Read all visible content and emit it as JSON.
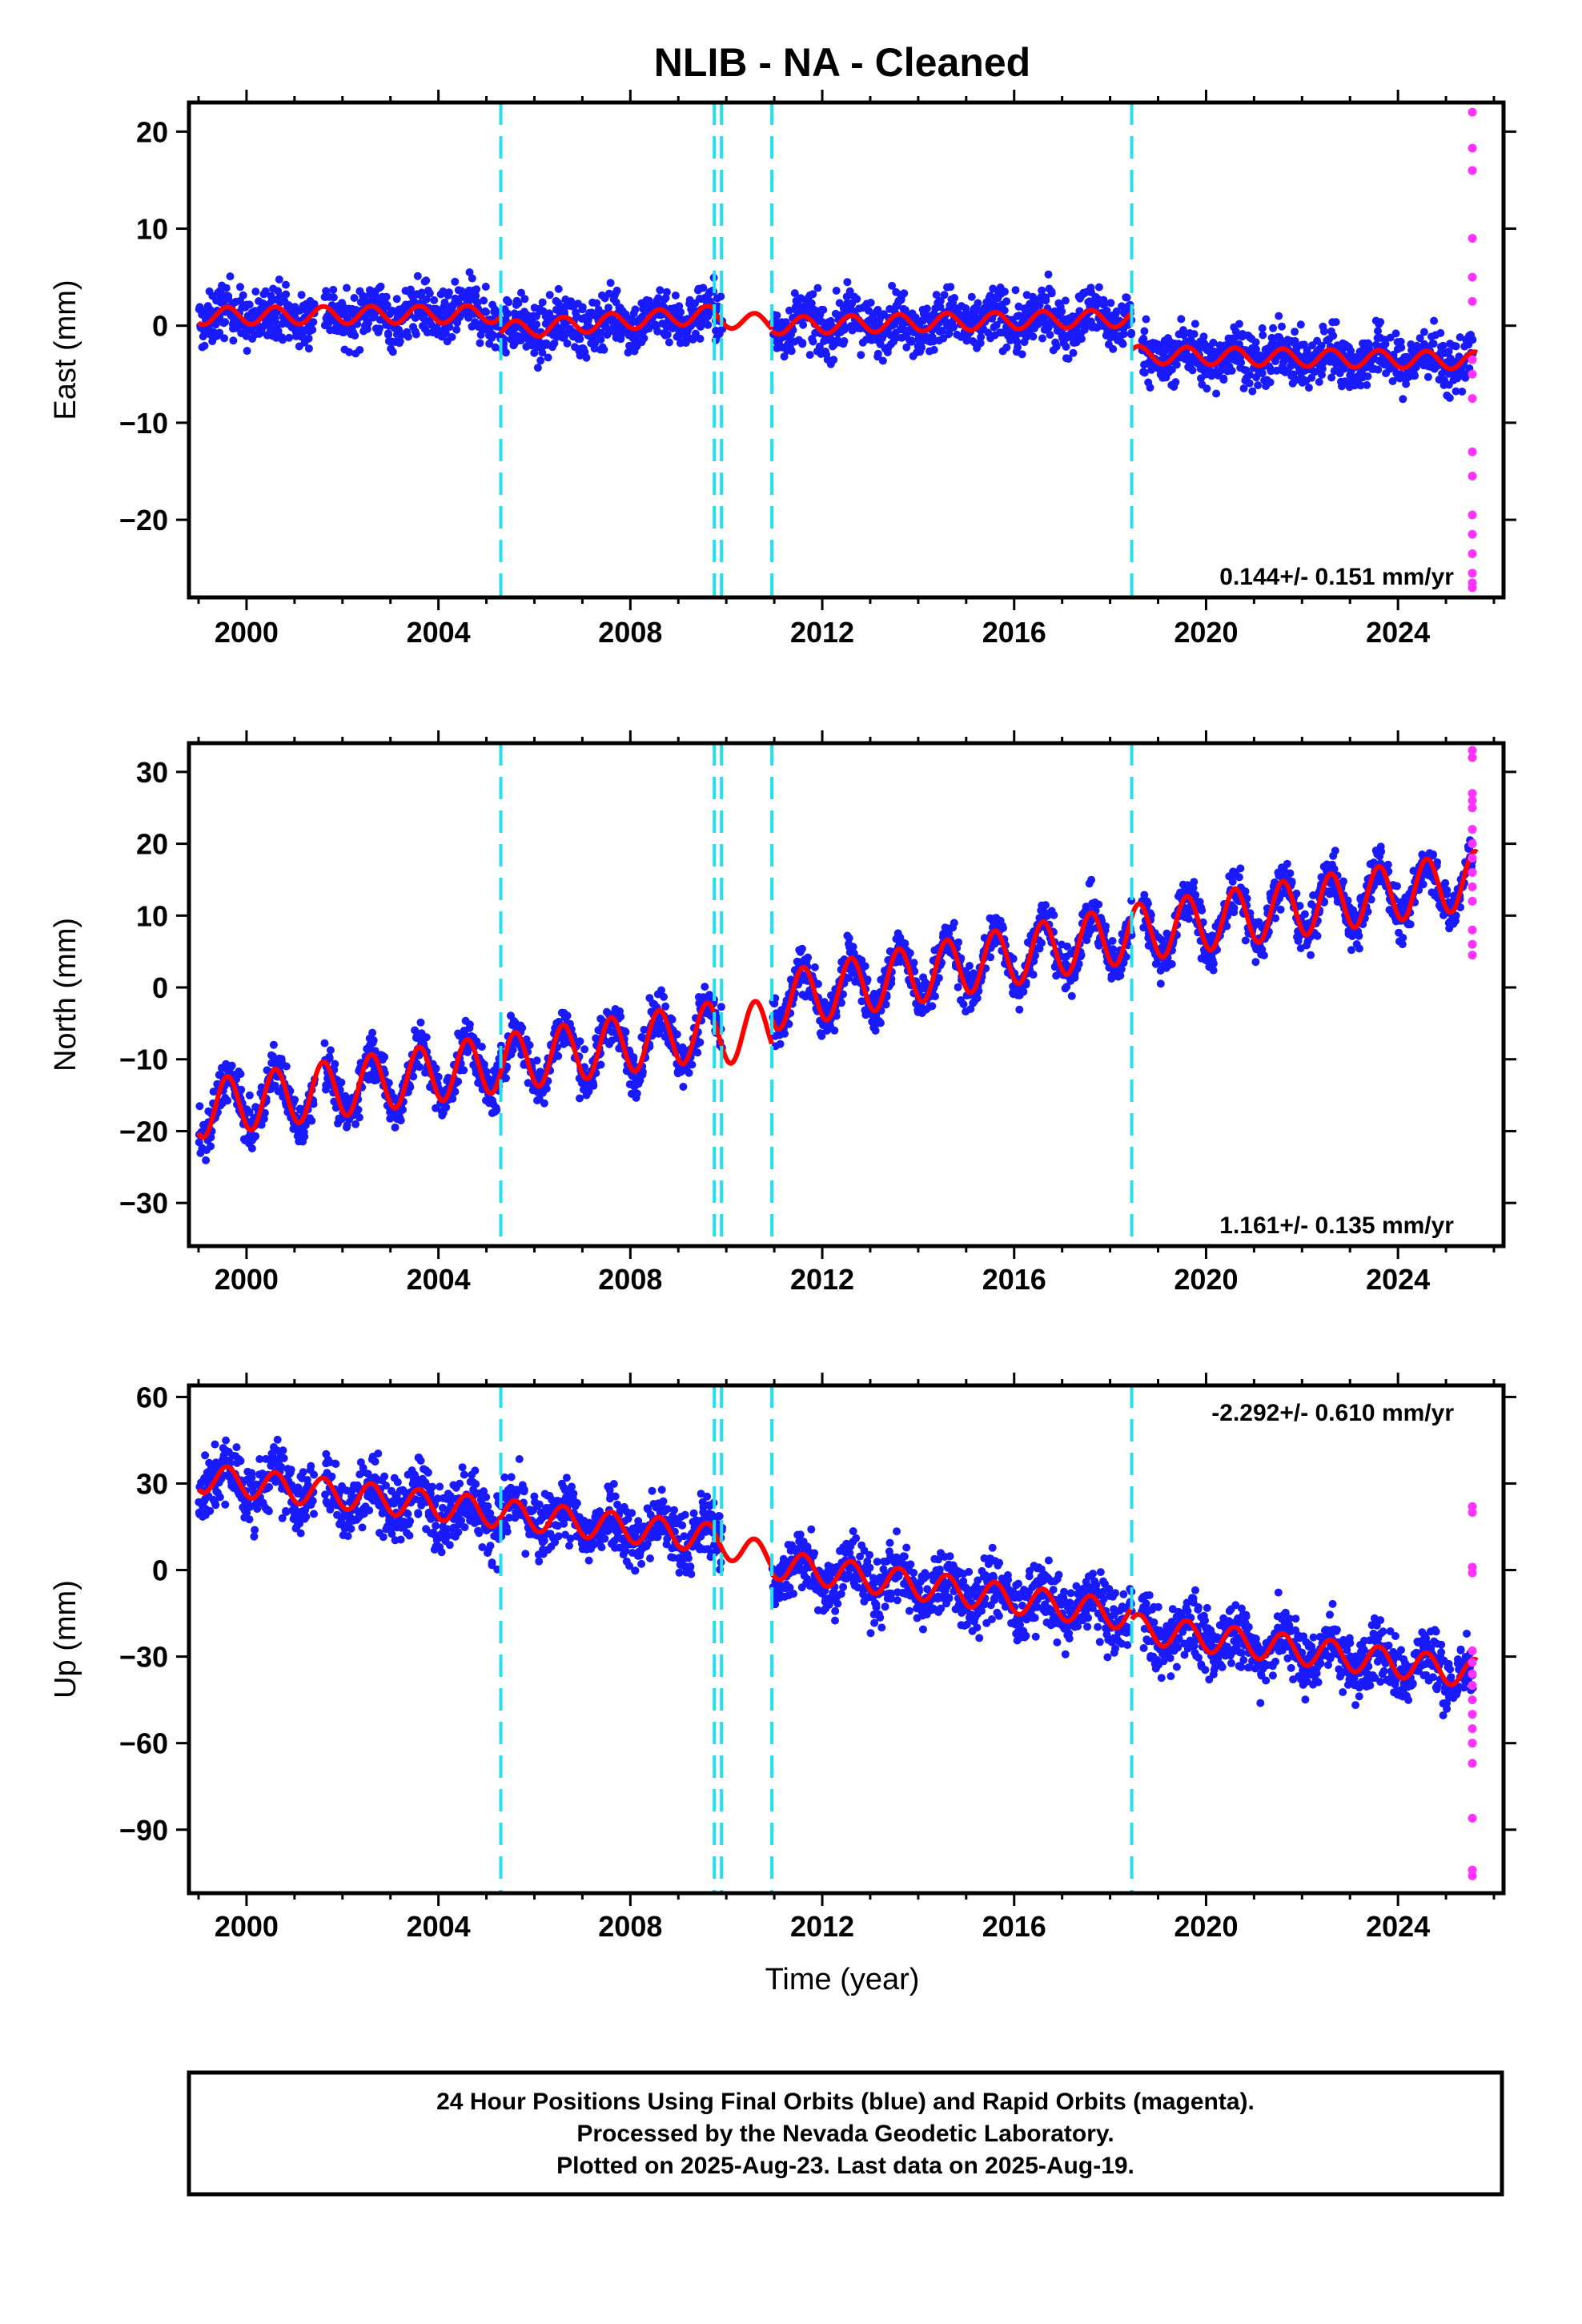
{
  "title": "NLIB  - NA - Cleaned",
  "xlabel": "Time (year)",
  "footer": {
    "line1": "24 Hour Positions Using Final Orbits (blue) and Rapid Orbits (magenta).",
    "line2": "Processed by the Nevada Geodetic Laboratory.",
    "line3": "Plotted on 2025-Aug-23. Last data on 2025-Aug-19."
  },
  "colors": {
    "final": "#1a1aff",
    "rapid": "#ff33ff",
    "model": "#ff0000",
    "events": "#22e0ee",
    "axis": "#000000"
  },
  "chart_data": [
    {
      "type": "scatter",
      "component": "east",
      "ylabel": "East (mm)",
      "rate": "0.144+/- 0.151 mm/yr",
      "rate_position": "bottom-right",
      "xlim": [
        1998.8,
        2026.2
      ],
      "ylim": [
        -28,
        23
      ],
      "xticks": [
        2000,
        2004,
        2008,
        2012,
        2016,
        2020,
        2024
      ],
      "yticks": [
        20,
        10,
        0,
        -10,
        -20
      ],
      "event_lines": [
        2005.3,
        2009.75,
        2009.9,
        2010.95,
        2018.45
      ],
      "data_gaps": [
        [
          2001.4,
          2001.6
        ],
        [
          2009.9,
          2010.95
        ],
        [
          2018.45,
          2018.65
        ]
      ],
      "rapid_x": 2025.55,
      "rapid_values": [
        22.0,
        18.3,
        16.0,
        9.0,
        5.0,
        2.5,
        -3.5,
        -5.0,
        -7.5,
        -13.0,
        -15.5,
        -19.5,
        -21.5,
        -23.5,
        -25.5,
        -26.5,
        -27.0
      ],
      "model_segments": [
        {
          "x0": 1999.0,
          "x1": 2005.3,
          "y0": 1.0,
          "y1": 1.2,
          "amp": 0.9
        },
        {
          "x0": 2005.3,
          "x1": 2009.75,
          "y0": -0.5,
          "y1": 1.2,
          "amp": 0.9
        },
        {
          "x0": 2009.75,
          "x1": 2010.95,
          "y0": 0.8,
          "y1": 0.2,
          "amp": 0.9
        },
        {
          "x0": 2010.95,
          "x1": 2018.45,
          "y0": 0.0,
          "y1": 0.8,
          "amp": 0.9
        },
        {
          "x0": 2018.45,
          "x1": 2025.65,
          "y0": -3.0,
          "y1": -3.6,
          "amp": 0.9
        }
      ],
      "scatter_noise": 2.0
    },
    {
      "type": "scatter",
      "component": "north",
      "ylabel": "North (mm)",
      "rate": "1.161+/- 0.135 mm/yr",
      "rate_position": "bottom-right",
      "xlim": [
        1998.8,
        2026.2
      ],
      "ylim": [
        -36,
        34
      ],
      "xticks": [
        2000,
        2004,
        2008,
        2012,
        2016,
        2020,
        2024
      ],
      "yticks": [
        30,
        20,
        10,
        0,
        -10,
        -20,
        -30
      ],
      "event_lines": [
        2005.3,
        2009.75,
        2009.9,
        2010.95,
        2018.45
      ],
      "data_gaps": [
        [
          2001.4,
          2001.6
        ],
        [
          2009.9,
          2010.95
        ],
        [
          2018.45,
          2018.65
        ]
      ],
      "rapid_x": 2025.55,
      "rapid_values": [
        33.0,
        32.0,
        27.0,
        26.0,
        25.0,
        22.0,
        20.0,
        18.0,
        16.0,
        14.0,
        12.0,
        8.0,
        6.0,
        4.5
      ],
      "model_segments": [
        {
          "x0": 1999.0,
          "x1": 2009.75,
          "y0": -17.0,
          "y1": -6.0,
          "amp": 4.0
        },
        {
          "x0": 2009.75,
          "x1": 2010.95,
          "y0": -7.0,
          "y1": -5.5,
          "amp": 4.0
        },
        {
          "x0": 2010.95,
          "x1": 2018.45,
          "y0": -2.0,
          "y1": 7.5,
          "amp": 4.0
        },
        {
          "x0": 2018.45,
          "x1": 2025.65,
          "y0": 7.5,
          "y1": 15.0,
          "amp": 4.0
        }
      ],
      "scatter_noise": 2.3
    },
    {
      "type": "scatter",
      "component": "up",
      "ylabel": "Up (mm)",
      "rate": "-2.292+/- 0.610 mm/yr",
      "rate_position": "top-right",
      "xlim": [
        1998.8,
        2026.2
      ],
      "ylim": [
        -112,
        64
      ],
      "xticks": [
        2000,
        2004,
        2008,
        2012,
        2016,
        2020,
        2024
      ],
      "yticks": [
        60,
        30,
        0,
        -30,
        -60,
        -90
      ],
      "event_lines": [
        2005.3,
        2009.75,
        2009.9,
        2010.95,
        2018.45
      ],
      "data_gaps": [
        [
          2001.4,
          2001.6
        ],
        [
          2009.9,
          2010.95
        ],
        [
          2018.45,
          2018.65
        ]
      ],
      "rapid_x": 2025.55,
      "rapid_values": [
        22.0,
        20.0,
        1.0,
        -1.0,
        -28.0,
        -32.0,
        -36.0,
        -40.0,
        -45.0,
        -50.0,
        -55.0,
        -60.0,
        -67.0,
        -86.0,
        -104.0,
        -106.0
      ],
      "model_segments": [
        {
          "x0": 1999.0,
          "x1": 2009.75,
          "y0": 32.0,
          "y1": 11.0,
          "amp": 5.0
        },
        {
          "x0": 2009.75,
          "x1": 2010.95,
          "y0": 10.0,
          "y1": 4.0,
          "amp": 5.0
        },
        {
          "x0": 2010.95,
          "x1": 2018.45,
          "y0": 2.0,
          "y1": -16.0,
          "amp": 5.0
        },
        {
          "x0": 2018.45,
          "x1": 2025.65,
          "y0": -20.0,
          "y1": -36.0,
          "amp": 5.0
        }
      ],
      "scatter_noise": 8.0
    }
  ]
}
